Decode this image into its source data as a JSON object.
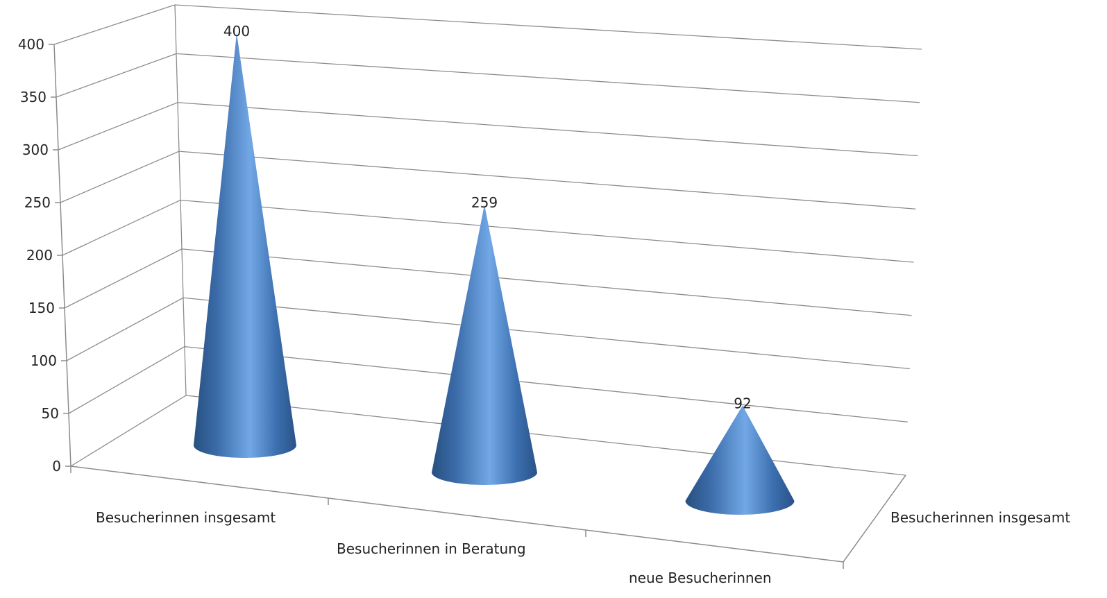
{
  "chart_data": {
    "type": "bar",
    "style": "3d-cone",
    "categories": [
      "Besucherinnen insgesamt",
      "Besucherinnen in Beratung",
      "neue Besucherinnen"
    ],
    "series": [
      {
        "name": "Besucherinnen insgesamt",
        "values": [
          400,
          259,
          92
        ],
        "color": "#4a7ebf"
      }
    ],
    "ylim": [
      0,
      400
    ],
    "yticks": [
      0,
      50,
      100,
      150,
      200,
      250,
      300,
      350,
      400
    ],
    "grid": true,
    "data_labels": true,
    "legend": "none"
  }
}
